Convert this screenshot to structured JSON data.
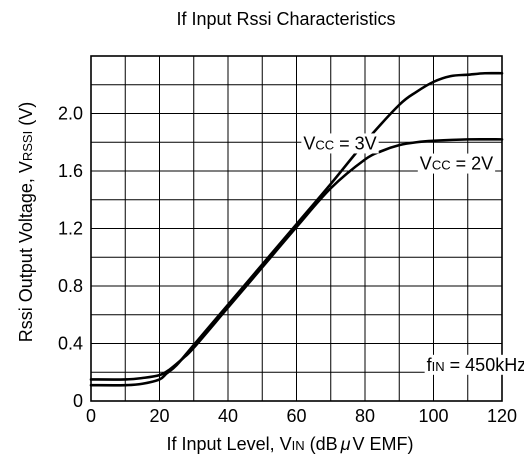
{
  "chart_data": {
    "type": "line",
    "title": "If Input Rssi Characteristics",
    "xlabel": {
      "main": "If Input Level, V",
      "sub": "IN",
      "unit": " (dB",
      "mu": "μ",
      "unit_end": "V EMF)"
    },
    "ylabel": {
      "main": "Rssi Output Voltage, V",
      "sub": "RSSI",
      "unit": " (V)"
    },
    "xlim": [
      0,
      120
    ],
    "ylim": [
      0,
      2.4
    ],
    "x_ticks": [
      0,
      20,
      40,
      60,
      80,
      100,
      120
    ],
    "x_tick_labels": [
      "0",
      "20",
      "40",
      "60",
      "80",
      "100",
      "120"
    ],
    "y_ticks": [
      0,
      0.4,
      0.8,
      1.2,
      1.6,
      2.0
    ],
    "y_tick_labels": [
      "0",
      "0.4",
      "0.8",
      "1.2",
      "1.6",
      "2.0"
    ],
    "x_grid_step": 10,
    "y_grid_step": 0.2,
    "grid": true,
    "series": [
      {
        "name": "V_CC = 3V",
        "x": [
          0,
          10,
          15,
          20,
          22,
          25,
          30,
          40,
          50,
          60,
          70,
          80,
          90,
          95,
          100,
          105,
          110,
          115,
          120
        ],
        "y": [
          0.11,
          0.11,
          0.12,
          0.15,
          0.19,
          0.25,
          0.39,
          0.67,
          0.95,
          1.23,
          1.51,
          1.8,
          2.06,
          2.15,
          2.22,
          2.26,
          2.27,
          2.28,
          2.28
        ]
      },
      {
        "name": "V_CC = 2V",
        "x": [
          0,
          10,
          15,
          20,
          23,
          27,
          30,
          40,
          50,
          60,
          70,
          80,
          85,
          90,
          95,
          100,
          110,
          120
        ],
        "y": [
          0.15,
          0.15,
          0.16,
          0.18,
          0.22,
          0.3,
          0.37,
          0.65,
          0.93,
          1.21,
          1.48,
          1.68,
          1.74,
          1.78,
          1.8,
          1.81,
          1.82,
          1.82
        ]
      }
    ],
    "annotations": [
      {
        "id": "vcc3",
        "main": "V",
        "sub": "CC",
        "rest": " = 3V",
        "x": 62,
        "y": 1.75
      },
      {
        "id": "vcc2",
        "main": "V",
        "sub": "CC",
        "rest": " = 2V",
        "x": 96,
        "y": 1.61
      },
      {
        "id": "fin",
        "main": "f",
        "sub": "IN",
        "rest": " = 450kHz",
        "x": 98,
        "y": 0.21
      }
    ]
  },
  "colors": {
    "line": "#000000",
    "grid": "#000000",
    "background": "#ffffff"
  }
}
